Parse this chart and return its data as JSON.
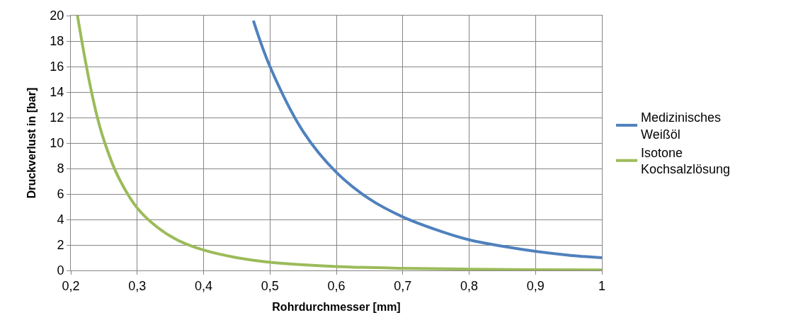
{
  "chart_data": {
    "type": "line",
    "xlabel": "Rohrdurchmesser [mm]",
    "ylabel": "Druckverlust in [bar]",
    "xlim": [
      0.2,
      1
    ],
    "ylim": [
      0,
      20
    ],
    "xticks": [
      {
        "value": 0.2,
        "label": "0,2"
      },
      {
        "value": 0.3,
        "label": "0,3"
      },
      {
        "value": 0.4,
        "label": "0,4"
      },
      {
        "value": 0.5,
        "label": "0,5"
      },
      {
        "value": 0.6,
        "label": "0,6"
      },
      {
        "value": 0.7,
        "label": "0,7"
      },
      {
        "value": 0.8,
        "label": "0,8"
      },
      {
        "value": 0.9,
        "label": "0,9"
      },
      1
    ],
    "yticks": [
      0,
      2,
      4,
      6,
      8,
      10,
      12,
      14,
      16,
      18,
      20
    ],
    "grid": true,
    "legend": "right",
    "marker": "none",
    "line_style": "solid",
    "series": [
      {
        "name": "Medizinisches Weißöl",
        "color": "#4f81bd",
        "x": [
          0.475,
          0.5,
          0.55,
          0.6,
          0.65,
          0.7,
          0.75,
          0.8,
          0.85,
          0.9,
          0.95,
          1
        ],
        "values": [
          19.6,
          16,
          10.9,
          7.7,
          5.6,
          4.2,
          3.2,
          2.4,
          1.9,
          1.5,
          1.2,
          1.0
        ]
      },
      {
        "name": "Isotone Kochsalzlösung",
        "color": "#9bbb59",
        "x": [
          0.21,
          0.22,
          0.23,
          0.24,
          0.25,
          0.27,
          0.3,
          0.33,
          0.36,
          0.4,
          0.45,
          0.5,
          0.6,
          0.7,
          0.8,
          0.9,
          1
        ],
        "values": [
          20,
          17,
          14.3,
          12,
          10.2,
          7.5,
          4.9,
          3.4,
          2.4,
          1.6,
          1.0,
          0.64,
          0.31,
          0.17,
          0.1,
          0.06,
          0.04
        ]
      }
    ]
  }
}
